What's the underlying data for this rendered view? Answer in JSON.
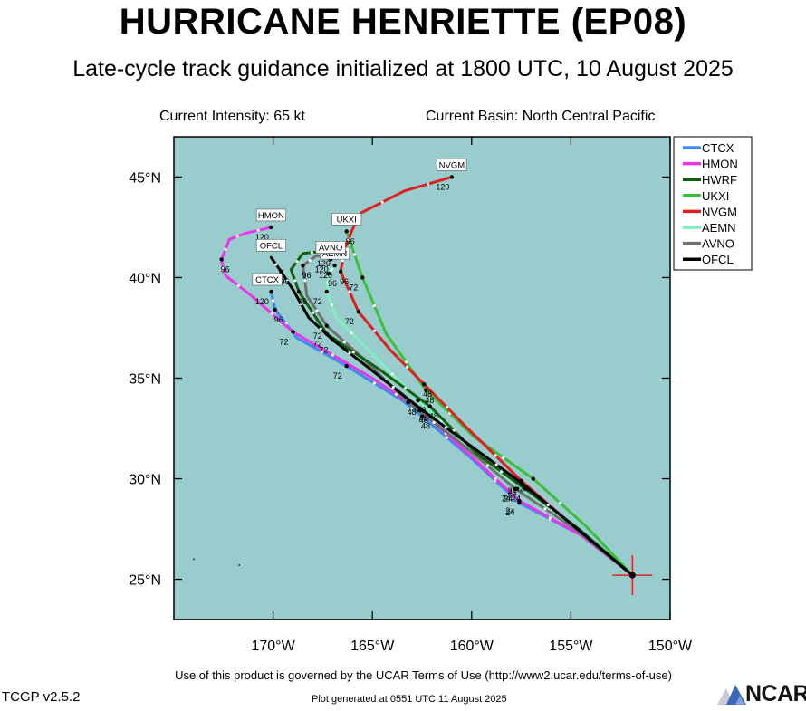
{
  "header": {
    "title": "HURRICANE HENRIETTE (EP08)",
    "subtitle": "Late-cycle track guidance initialized at 1800 UTC, 10 August 2025",
    "intensity": "Current Intensity: 65 kt",
    "basin": "Current Basin: North Central Pacific"
  },
  "footer": {
    "terms": "Use of this product is governed by the UCAR Terms of Use (http://www2.ucar.edu/terms-of-use)",
    "version": "TCGP v2.5.2",
    "generated": "Plot generated at 0551 UTC   11 August 2025",
    "logo_text": "NCAR"
  },
  "colors": {
    "ocean": "#99cccc",
    "CTCX": "#3c8cf0",
    "HMON": "#e837e8",
    "HWRF": "#106010",
    "UKXI": "#3cbf3c",
    "NVGM": "#e02020",
    "AEMN": "#80eec0",
    "AVNO": "#707070",
    "OFCL": "#000000"
  },
  "chart_data": {
    "type": "line",
    "xlabel": "",
    "ylabel": "",
    "xlim": [
      -175,
      -150
    ],
    "ylim": [
      23,
      47
    ],
    "xticks": [
      -170,
      -165,
      -160,
      -155,
      -150
    ],
    "yticks": [
      25,
      30,
      35,
      40,
      45
    ],
    "xtick_labels": [
      "170°W",
      "165°W",
      "160°W",
      "155°W",
      "150°W"
    ],
    "ytick_labels": [
      "25°N",
      "30°N",
      "35°N",
      "40°N",
      "45°N"
    ],
    "grid": false,
    "legend": "right",
    "current_position": [
      -151.9,
      25.2
    ],
    "series": [
      {
        "name": "CTCX",
        "points": [
          [
            -151.9,
            25.2
          ],
          [
            -154.5,
            27.2
          ],
          [
            -157.6,
            28.8
          ],
          [
            -160.0,
            31.0
          ],
          [
            -162.5,
            33.1
          ],
          [
            -163.5,
            33.9
          ],
          [
            -166.3,
            35.6
          ],
          [
            -168.8,
            37.0
          ],
          [
            -169.9,
            38.4
          ],
          [
            -170.1,
            39.3
          ]
        ],
        "hour_labels": [
          {
            "h": "24",
            "x": -157.6,
            "y": 28.8
          },
          {
            "h": "48",
            "x": -162.5,
            "y": 33.1
          },
          {
            "h": "72",
            "x": -166.3,
            "y": 35.6
          },
          {
            "h": "96",
            "x": -169.9,
            "y": 38.4
          },
          {
            "h": "120",
            "x": -170.1,
            "y": 39.3
          }
        ],
        "end_label": "CTCX",
        "end_at": [
          -170.3,
          39.3
        ]
      },
      {
        "name": "HMON",
        "points": [
          [
            -151.9,
            25.2
          ],
          [
            -154.5,
            27.2
          ],
          [
            -157.6,
            28.9
          ],
          [
            -160.0,
            31.1
          ],
          [
            -162.6,
            33.4
          ],
          [
            -165.0,
            35.0
          ],
          [
            -169.0,
            37.3
          ],
          [
            -171.1,
            39.1
          ],
          [
            -172.4,
            40.1
          ],
          [
            -172.6,
            40.9
          ],
          [
            -172.2,
            41.9
          ],
          [
            -171.4,
            42.2
          ],
          [
            -170.1,
            42.5
          ]
        ],
        "hour_labels": [
          {
            "h": "24",
            "x": -157.6,
            "y": 28.9
          },
          {
            "h": "48",
            "x": -162.6,
            "y": 33.4
          },
          {
            "h": "72",
            "x": -169.0,
            "y": 37.3
          },
          {
            "h": "96",
            "x": -172.6,
            "y": 40.9
          },
          {
            "h": "120",
            "x": -170.1,
            "y": 42.5
          }
        ],
        "end_label": "HMON",
        "end_at": [
          -170.1,
          42.5
        ]
      },
      {
        "name": "HWRF",
        "points": [
          [
            -151.9,
            25.2
          ],
          [
            -154.6,
            27.5
          ],
          [
            -157.3,
            29.5
          ],
          [
            -159.7,
            31.2
          ],
          [
            -162.1,
            33.6
          ],
          [
            -164.6,
            35.4
          ],
          [
            -167.3,
            37.2
          ],
          [
            -168.7,
            39.3
          ],
          [
            -169.1,
            40.4
          ],
          [
            -168.5,
            41.2
          ],
          [
            -167.6,
            41.3
          ],
          [
            -167.0,
            41.2
          ]
        ],
        "hour_labels": [
          {
            "h": "24",
            "x": -157.3,
            "y": 29.5
          },
          {
            "h": "48",
            "x": -162.1,
            "y": 33.6
          },
          {
            "h": "72",
            "x": -167.3,
            "y": 37.2
          },
          {
            "h": "96",
            "x": -168.7,
            "y": 39.3
          },
          {
            "h": "120",
            "x": -167.0,
            "y": 41.2
          }
        ],
        "end_label": "",
        "end_at": [
          -167.0,
          41.2
        ]
      },
      {
        "name": "UKXI",
        "points": [
          [
            -151.9,
            25.2
          ],
          [
            -154.2,
            27.6
          ],
          [
            -156.9,
            30.0
          ],
          [
            -159.9,
            32.1
          ],
          [
            -162.3,
            34.4
          ],
          [
            -164.3,
            37.2
          ],
          [
            -165.5,
            40.0
          ],
          [
            -166.3,
            42.3
          ]
        ],
        "hour_labels": [
          {
            "h": "24",
            "x": -156.9,
            "y": 30.0
          },
          {
            "h": "48",
            "x": -162.3,
            "y": 34.4
          },
          {
            "h": "72",
            "x": -165.5,
            "y": 40.0
          },
          {
            "h": "96",
            "x": -166.3,
            "y": 42.3
          }
        ],
        "end_label": "UKXI",
        "end_at": [
          -166.3,
          42.3
        ]
      },
      {
        "name": "NVGM",
        "points": [
          [
            -151.9,
            25.2
          ],
          [
            -154.6,
            27.4
          ],
          [
            -157.5,
            29.9
          ],
          [
            -160.1,
            32.4
          ],
          [
            -162.4,
            34.7
          ],
          [
            -164.1,
            36.4
          ],
          [
            -165.7,
            38.3
          ],
          [
            -166.6,
            40.3
          ],
          [
            -166.4,
            41.4
          ],
          [
            -166.0,
            42.4
          ],
          [
            -165.6,
            43.2
          ],
          [
            -163.4,
            44.3
          ],
          [
            -161.0,
            45.0
          ]
        ],
        "hour_labels": [
          {
            "h": "24",
            "x": -157.5,
            "y": 29.9
          },
          {
            "h": "48",
            "x": -162.4,
            "y": 34.7
          },
          {
            "h": "72",
            "x": -165.7,
            "y": 38.3
          },
          {
            "h": "96",
            "x": -166.6,
            "y": 40.3
          },
          {
            "h": "120",
            "x": -161.0,
            "y": 45.0
          }
        ],
        "end_label": "NVGM",
        "end_at": [
          -161.0,
          45.0
        ]
      },
      {
        "name": "AEMN",
        "points": [
          [
            -151.9,
            25.2
          ],
          [
            -154.6,
            27.4
          ],
          [
            -157.7,
            29.5
          ],
          [
            -160.4,
            31.8
          ],
          [
            -162.7,
            33.9
          ],
          [
            -165.3,
            36.5
          ],
          [
            -166.8,
            38.0
          ],
          [
            -167.3,
            39.3
          ],
          [
            -167.2,
            40.2
          ],
          [
            -166.9,
            40.6
          ]
        ],
        "hour_labels": [
          {
            "h": "24",
            "x": -157.7,
            "y": 29.5
          },
          {
            "h": "48",
            "x": -162.7,
            "y": 33.9
          },
          {
            "h": "72",
            "x": -167.3,
            "y": 39.3
          },
          {
            "h": "96",
            "x": -167.2,
            "y": 40.2
          },
          {
            "h": "120",
            "x": -166.9,
            "y": 40.6
          }
        ],
        "end_label": "AEMN",
        "end_at": [
          -166.9,
          40.6
        ]
      },
      {
        "name": "AVNO",
        "points": [
          [
            -151.9,
            25.2
          ],
          [
            -154.8,
            27.5
          ],
          [
            -157.8,
            29.5
          ],
          [
            -160.6,
            31.8
          ],
          [
            -163.2,
            33.8
          ],
          [
            -165.5,
            36.0
          ],
          [
            -167.3,
            37.6
          ],
          [
            -168.3,
            39.1
          ],
          [
            -168.5,
            40.6
          ],
          [
            -167.8,
            41.1
          ],
          [
            -167.1,
            40.9
          ]
        ],
        "hour_labels": [
          {
            "h": "24",
            "x": -157.8,
            "y": 29.5
          },
          {
            "h": "48",
            "x": -163.2,
            "y": 33.8
          },
          {
            "h": "72",
            "x": -167.3,
            "y": 37.6
          },
          {
            "h": "96",
            "x": -168.5,
            "y": 40.6
          },
          {
            "h": "120",
            "x": -167.1,
            "y": 40.9
          }
        ],
        "end_label": "AVNO",
        "end_at": [
          -167.1,
          40.9
        ]
      },
      {
        "name": "OFCL",
        "points": [
          [
            -151.9,
            25.2
          ],
          [
            -154.8,
            27.6
          ],
          [
            -157.5,
            29.8
          ],
          [
            -160.0,
            31.6
          ],
          [
            -162.6,
            33.5
          ],
          [
            -165.3,
            35.6
          ],
          [
            -167.0,
            36.9
          ],
          [
            -168.2,
            38.0
          ],
          [
            -169.0,
            39.4
          ],
          [
            -169.6,
            40.3
          ],
          [
            -170.1,
            41.0
          ]
        ],
        "hour_labels": [
          {
            "h": "24",
            "x": -157.5,
            "y": 29.8
          },
          {
            "h": "48",
            "x": -162.6,
            "y": 33.5
          },
          {
            "h": "72",
            "x": -167.0,
            "y": 36.9
          },
          {
            "h": "96",
            "x": -169.6,
            "y": 40.3
          }
        ],
        "end_label": "OFCL",
        "end_at": [
          -170.1,
          41.0
        ]
      }
    ]
  }
}
